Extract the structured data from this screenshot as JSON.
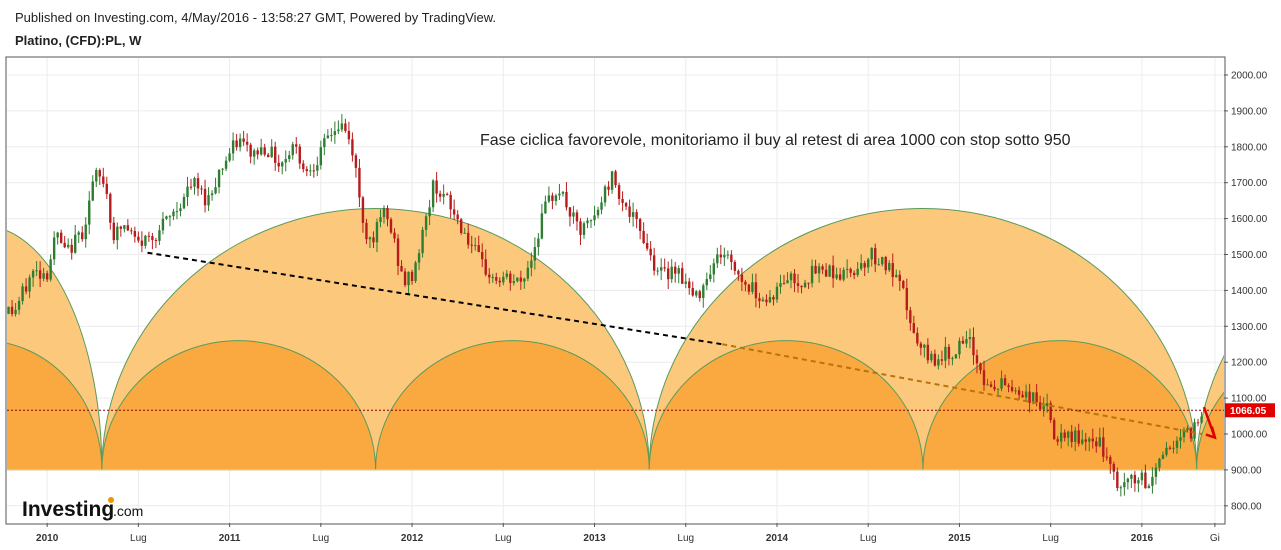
{
  "header": {
    "published": "Published on Investing.com, 4/May/2016 - 13:58:27 GMT, Powered by TradingView.",
    "symbol": "Platino, (CFD):PL, W"
  },
  "annotation": "Fase ciclica favorevole, monitoriamo il buy al retest di area 1000 con stop sotto 950",
  "logo": {
    "main": "Investing",
    "suffix": ".com"
  },
  "colors": {
    "up": "#2e7d32",
    "down": "#b71c1c",
    "outer_arc": "#fcc97c",
    "inner_arc": "#f9a940",
    "arc_stroke": "#5b9a5b",
    "trend_black": "#000000",
    "trend_brown": "#b8730a",
    "price_line": "#8b0000",
    "price_label_bg": "#e00000",
    "arrow": "#e00000"
  },
  "chart_data": {
    "type": "candlestick",
    "title": "Platino, (CFD):PL, W",
    "ylim": [
      760,
      2060
    ],
    "y_ticks": [
      800,
      900,
      1000,
      1100,
      1200,
      1300,
      1400,
      1500,
      1600,
      1700,
      1800,
      1900,
      2000
    ],
    "y_tick_labels": [
      "800.00",
      "900.00",
      "1000.00",
      "1100.00",
      "1200.00",
      "1300.00",
      "1400.00",
      "1500.00",
      "1600.00",
      "1700.00",
      "1800.00",
      "1900.00",
      "2000.00"
    ],
    "x_range": [
      "2009-10",
      "2016-06"
    ],
    "x_ticks": [
      {
        "label": "2010",
        "t": 2010.0,
        "bold": true
      },
      {
        "label": "Lug",
        "t": 2010.5,
        "bold": false
      },
      {
        "label": "2011",
        "t": 2011.0,
        "bold": true
      },
      {
        "label": "Lug",
        "t": 2011.5,
        "bold": false
      },
      {
        "label": "2012",
        "t": 2012.0,
        "bold": true
      },
      {
        "label": "Lug",
        "t": 2012.5,
        "bold": false
      },
      {
        "label": "2013",
        "t": 2013.0,
        "bold": true
      },
      {
        "label": "Lug",
        "t": 2013.5,
        "bold": false
      },
      {
        "label": "2014",
        "t": 2014.0,
        "bold": true
      },
      {
        "label": "Lug",
        "t": 2014.5,
        "bold": false
      },
      {
        "label": "2015",
        "t": 2015.0,
        "bold": true
      },
      {
        "label": "Lug",
        "t": 2015.5,
        "bold": false
      },
      {
        "label": "2016",
        "t": 2016.0,
        "bold": true
      },
      {
        "label": "Gi",
        "t": 2016.4,
        "bold": false
      }
    ],
    "current_price": 1066.05,
    "current_price_label": "1066.05",
    "price_path": [
      [
        2009.75,
        1350
      ],
      [
        2009.82,
        1340
      ],
      [
        2009.92,
        1450
      ],
      [
        2010.0,
        1450
      ],
      [
        2010.05,
        1560
      ],
      [
        2010.1,
        1500
      ],
      [
        2010.2,
        1570
      ],
      [
        2010.26,
        1720
      ],
      [
        2010.32,
        1700
      ],
      [
        2010.36,
        1550
      ],
      [
        2010.42,
        1580
      ],
      [
        2010.5,
        1530
      ],
      [
        2010.6,
        1560
      ],
      [
        2010.7,
        1620
      ],
      [
        2010.8,
        1700
      ],
      [
        2010.88,
        1650
      ],
      [
        2010.95,
        1740
      ],
      [
        2011.05,
        1820
      ],
      [
        2011.12,
        1780
      ],
      [
        2011.2,
        1800
      ],
      [
        2011.28,
        1750
      ],
      [
        2011.35,
        1810
      ],
      [
        2011.42,
        1730
      ],
      [
        2011.5,
        1780
      ],
      [
        2011.55,
        1840
      ],
      [
        2011.62,
        1860
      ],
      [
        2011.68,
        1780
      ],
      [
        2011.72,
        1620
      ],
      [
        2011.76,
        1540
      ],
      [
        2011.8,
        1560
      ],
      [
        2011.85,
        1620
      ],
      [
        2011.9,
        1540
      ],
      [
        2011.95,
        1420
      ],
      [
        2012.0,
        1440
      ],
      [
        2012.06,
        1560
      ],
      [
        2012.12,
        1700
      ],
      [
        2012.2,
        1640
      ],
      [
        2012.3,
        1550
      ],
      [
        2012.38,
        1470
      ],
      [
        2012.45,
        1430
      ],
      [
        2012.52,
        1430
      ],
      [
        2012.6,
        1420
      ],
      [
        2012.66,
        1500
      ],
      [
        2012.72,
        1620
      ],
      [
        2012.8,
        1690
      ],
      [
        2012.86,
        1620
      ],
      [
        2012.92,
        1560
      ],
      [
        2013.0,
        1600
      ],
      [
        2013.06,
        1680
      ],
      [
        2013.1,
        1720
      ],
      [
        2013.18,
        1620
      ],
      [
        2013.26,
        1560
      ],
      [
        2013.32,
        1480
      ],
      [
        2013.38,
        1440
      ],
      [
        2013.44,
        1470
      ],
      [
        2013.5,
        1420
      ],
      [
        2013.55,
        1370
      ],
      [
        2013.62,
        1450
      ],
      [
        2013.7,
        1510
      ],
      [
        2013.76,
        1470
      ],
      [
        2013.82,
        1420
      ],
      [
        2013.88,
        1400
      ],
      [
        2013.94,
        1370
      ],
      [
        2014.0,
        1400
      ],
      [
        2014.06,
        1440
      ],
      [
        2014.12,
        1420
      ],
      [
        2014.2,
        1450
      ],
      [
        2014.28,
        1460
      ],
      [
        2014.36,
        1440
      ],
      [
        2014.45,
        1470
      ],
      [
        2014.52,
        1500
      ],
      [
        2014.58,
        1480
      ],
      [
        2014.64,
        1440
      ],
      [
        2014.7,
        1380
      ],
      [
        2014.76,
        1250
      ],
      [
        2014.84,
        1210
      ],
      [
        2014.92,
        1220
      ],
      [
        2015.0,
        1240
      ],
      [
        2015.06,
        1250
      ],
      [
        2015.1,
        1200
      ],
      [
        2015.16,
        1120
      ],
      [
        2015.24,
        1140
      ],
      [
        2015.32,
        1120
      ],
      [
        2015.4,
        1100
      ],
      [
        2015.48,
        1070
      ],
      [
        2015.52,
        990
      ],
      [
        2015.58,
        980
      ],
      [
        2015.64,
        1000
      ],
      [
        2015.7,
        960
      ],
      [
        2015.76,
        990
      ],
      [
        2015.8,
        930
      ],
      [
        2015.86,
        860
      ],
      [
        2015.9,
        850
      ],
      [
        2015.95,
        880
      ],
      [
        2016.0,
        870
      ],
      [
        2016.04,
        850
      ],
      [
        2016.08,
        920
      ],
      [
        2016.14,
        960
      ],
      [
        2016.2,
        990
      ],
      [
        2016.26,
        1000
      ],
      [
        2016.3,
        1030
      ],
      [
        2016.34,
        1066
      ]
    ],
    "arcs_outer": [
      {
        "start": 2009.0,
        "end": 2010.3,
        "apex": 1580
      },
      {
        "start": 2010.3,
        "end": 2013.3,
        "apex": 1628
      },
      {
        "start": 2013.3,
        "end": 2016.3,
        "apex": 1628
      },
      {
        "start": 2016.3,
        "end": 2019.3,
        "apex": 1628
      }
    ],
    "arcs_inner": [
      {
        "start": 2009.0,
        "end": 2010.3,
        "apex": 1260
      },
      {
        "start": 2010.3,
        "end": 2011.8,
        "apex": 1260
      },
      {
        "start": 2011.8,
        "end": 2013.3,
        "apex": 1260
      },
      {
        "start": 2013.3,
        "end": 2014.8,
        "apex": 1260
      },
      {
        "start": 2014.8,
        "end": 2016.3,
        "apex": 1260
      },
      {
        "start": 2016.3,
        "end": 2017.8,
        "apex": 1260
      }
    ],
    "arc_base": 900,
    "trendline_black": {
      "from": [
        2010.55,
        1505
      ],
      "to": [
        2013.7,
        1250
      ]
    },
    "trendline_brown": {
      "from": [
        2013.7,
        1250
      ],
      "to": [
        2016.33,
        1000
      ]
    },
    "arrow": {
      "from": [
        2016.34,
        1075
      ],
      "to": [
        2016.4,
        990
      ]
    }
  }
}
